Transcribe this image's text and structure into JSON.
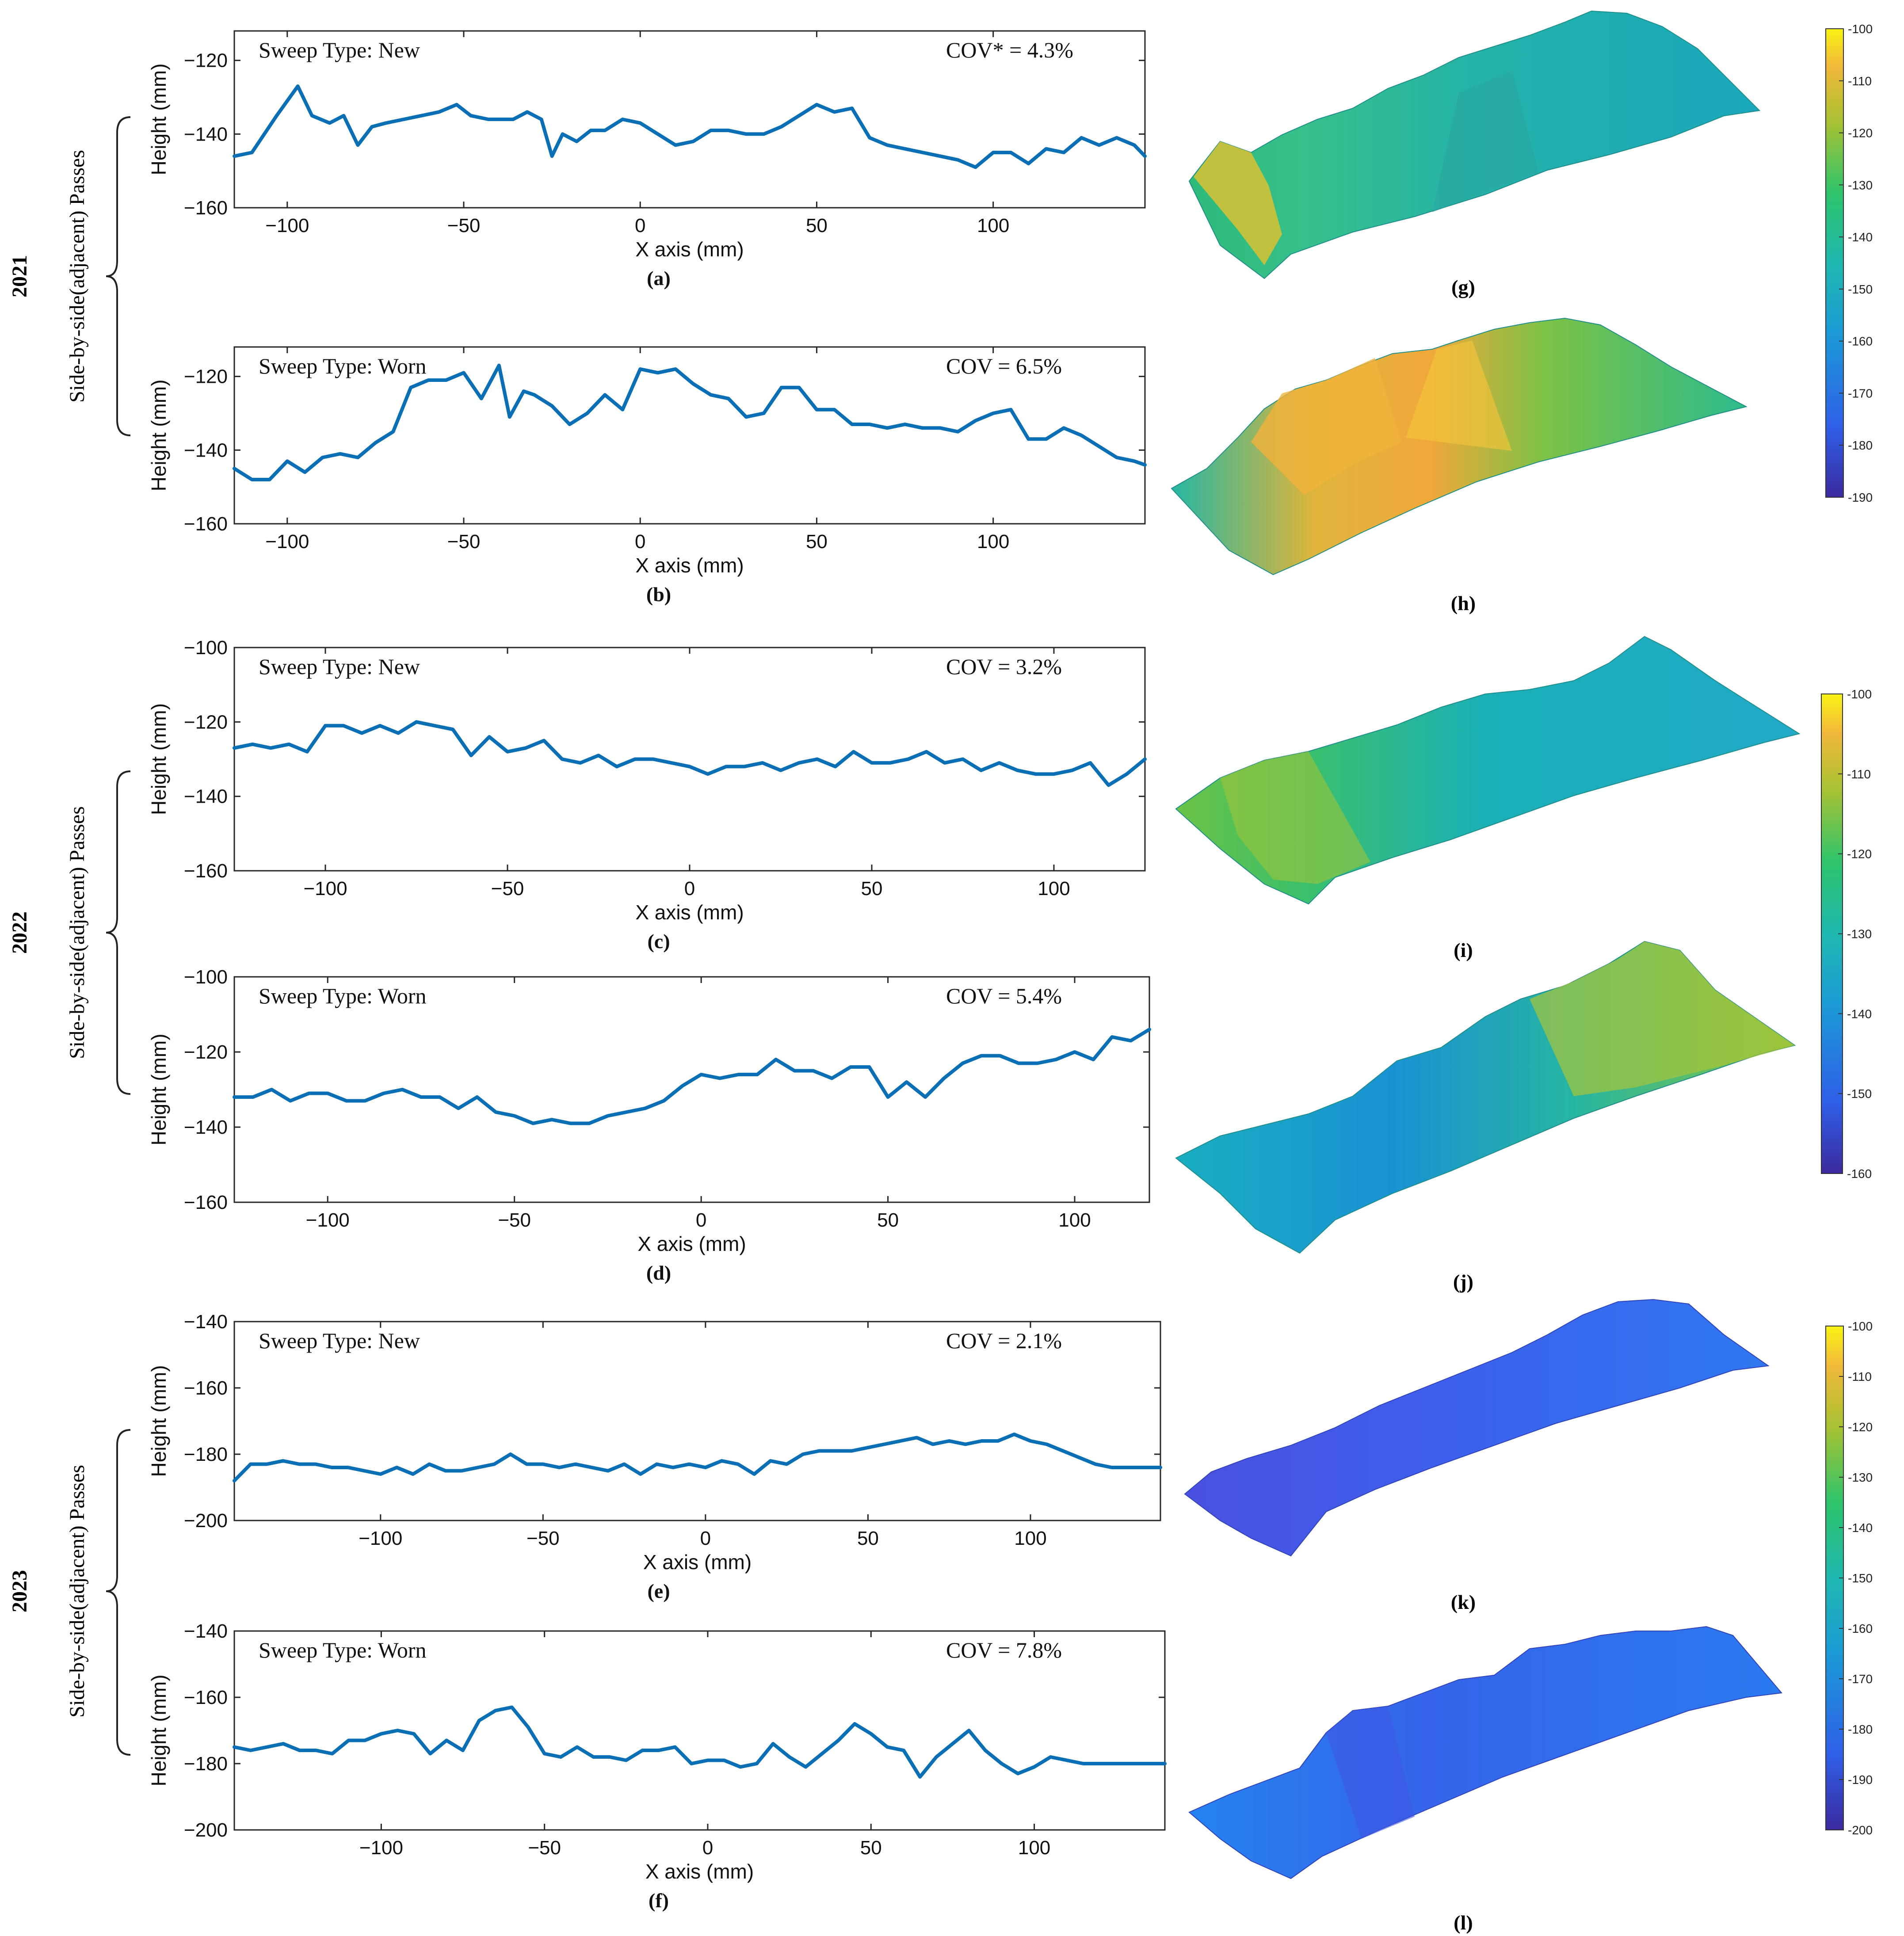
{
  "figure": {
    "colors": {
      "line": "#0a6fb5",
      "axis": "#262626",
      "text": "#111111"
    },
    "years": [
      {
        "label": "2021",
        "group_label": "Side-by-side(adjacent) Passes",
        "colorbar_ticks": [
          "-100",
          "-110",
          "-120",
          "-130",
          "-140",
          "-150",
          "-160",
          "-170",
          "-180",
          "-190"
        ]
      },
      {
        "label": "2022",
        "group_label": "Side-by-side(adjacent) Passes",
        "colorbar_ticks": [
          "-100",
          "-110",
          "-120",
          "-130",
          "-140",
          "-150",
          "-160"
        ]
      },
      {
        "label": "2023",
        "group_label": "Side-by-side(adjacent) Passes",
        "colorbar_ticks": [
          "-100",
          "-110",
          "-120",
          "-130",
          "-140",
          "-150",
          "-160",
          "-170",
          "-180",
          "-190",
          "-200"
        ]
      }
    ],
    "surfaces": [
      {
        "panel": "(g)",
        "icon": "3d-surface-icon"
      },
      {
        "panel": "(h)",
        "icon": "3d-surface-icon"
      },
      {
        "panel": "(i)",
        "icon": "3d-surface-icon"
      },
      {
        "panel": "(j)",
        "icon": "3d-surface-icon"
      },
      {
        "panel": "(k)",
        "icon": "3d-surface-icon"
      },
      {
        "panel": "(l)",
        "icon": "3d-surface-icon"
      }
    ]
  },
  "chart_data": [
    {
      "type": "line",
      "panel": "(a)",
      "sweep_label": "Sweep Type: New",
      "cov_label": "COV* = 4.3%",
      "xlabel": "X axis (mm)",
      "ylabel": "Height (mm)",
      "xlim": [
        -115,
        143
      ],
      "ylim": [
        -160,
        -112
      ],
      "xticks": [
        -100,
        -50,
        0,
        50,
        100
      ],
      "xtick_labels": [
        "−100",
        "−50",
        "0",
        "50",
        "100"
      ],
      "yticks": [
        -120,
        -140,
        -160
      ],
      "ytick_labels": [
        "−120",
        "−140",
        "−160"
      ],
      "x": [
        -115,
        -110,
        -103,
        -97,
        -93,
        -88,
        -84,
        -80,
        -76,
        -72,
        -67,
        -62,
        -57,
        -52,
        -48,
        -43,
        -36,
        -32,
        -28,
        -25,
        -22,
        -18,
        -14,
        -10,
        -5,
        0,
        5,
        10,
        15,
        20,
        25,
        30,
        35,
        40,
        45,
        50,
        55,
        60,
        65,
        70,
        75,
        80,
        85,
        90,
        95,
        100,
        105,
        110,
        115,
        120,
        125,
        130,
        135,
        140,
        143
      ],
      "y": [
        -146,
        -145,
        -135,
        -127,
        -135,
        -137,
        -135,
        -143,
        -138,
        -137,
        -136,
        -135,
        -134,
        -132,
        -135,
        -136,
        -136,
        -134,
        -136,
        -146,
        -140,
        -142,
        -139,
        -139,
        -136,
        -137,
        -140,
        -143,
        -142,
        -139,
        -139,
        -140,
        -140,
        -138,
        -135,
        -132,
        -134,
        -133,
        -141,
        -143,
        -144,
        -145,
        -146,
        -147,
        -149,
        -145,
        -145,
        -148,
        -144,
        -145,
        -141,
        -143,
        -141,
        -143,
        -146
      ]
    },
    {
      "type": "line",
      "panel": "(b)",
      "sweep_label": "Sweep Type: Worn",
      "cov_label": "COV = 6.5%",
      "xlabel": "X axis (mm)",
      "ylabel": "Height (mm)",
      "xlim": [
        -115,
        143
      ],
      "ylim": [
        -160,
        -112
      ],
      "xticks": [
        -100,
        -50,
        0,
        50,
        100
      ],
      "xtick_labels": [
        "−100",
        "−50",
        "0",
        "50",
        "100"
      ],
      "yticks": [
        -120,
        -140,
        -160
      ],
      "ytick_labels": [
        "−120",
        "−140",
        "−160"
      ],
      "x": [
        -115,
        -110,
        -105,
        -100,
        -95,
        -90,
        -85,
        -80,
        -75,
        -70,
        -65,
        -60,
        -55,
        -50,
        -45,
        -40,
        -37,
        -33,
        -30,
        -25,
        -20,
        -15,
        -10,
        -5,
        0,
        5,
        10,
        15,
        20,
        25,
        30,
        35,
        40,
        45,
        50,
        55,
        60,
        65,
        70,
        75,
        80,
        85,
        90,
        95,
        100,
        105,
        110,
        115,
        120,
        125,
        130,
        135,
        140,
        143
      ],
      "y": [
        -145,
        -148,
        -148,
        -143,
        -146,
        -142,
        -141,
        -142,
        -138,
        -135,
        -123,
        -121,
        -121,
        -119,
        -126,
        -117,
        -131,
        -124,
        -125,
        -128,
        -133,
        -130,
        -125,
        -129,
        -118,
        -119,
        -118,
        -122,
        -125,
        -126,
        -131,
        -130,
        -123,
        -123,
        -129,
        -129,
        -133,
        -133,
        -134,
        -133,
        -134,
        -134,
        -135,
        -132,
        -130,
        -129,
        -137,
        -137,
        -134,
        -136,
        -139,
        -142,
        -143,
        -144
      ]
    },
    {
      "type": "line",
      "panel": "(c)",
      "sweep_label": "Sweep Type: New",
      "cov_label": "COV = 3.2%",
      "xlabel": "X axis (mm)",
      "ylabel": "Height (mm)",
      "xlim": [
        -125,
        125
      ],
      "ylim": [
        -160,
        -100
      ],
      "xticks": [
        -100,
        -50,
        0,
        50,
        100
      ],
      "xtick_labels": [
        "−100",
        "−50",
        "0",
        "50",
        "100"
      ],
      "yticks": [
        -100,
        -120,
        -140,
        -160
      ],
      "ytick_labels": [
        "−100",
        "−120",
        "−140",
        "−160"
      ],
      "x": [
        -125,
        -120,
        -115,
        -110,
        -105,
        -100,
        -95,
        -90,
        -85,
        -80,
        -75,
        -70,
        -65,
        -60,
        -55,
        -50,
        -45,
        -40,
        -35,
        -30,
        -25,
        -20,
        -15,
        -10,
        -5,
        0,
        5,
        10,
        15,
        20,
        25,
        30,
        35,
        40,
        45,
        50,
        55,
        60,
        65,
        70,
        75,
        80,
        85,
        90,
        95,
        100,
        105,
        110,
        115,
        120,
        125
      ],
      "y": [
        -127,
        -126,
        -127,
        -126,
        -128,
        -121,
        -121,
        -123,
        -121,
        -123,
        -120,
        -121,
        -122,
        -129,
        -124,
        -128,
        -127,
        -125,
        -130,
        -131,
        -129,
        -132,
        -130,
        -130,
        -131,
        -132,
        -134,
        -132,
        -132,
        -131,
        -133,
        -131,
        -130,
        -132,
        -128,
        -131,
        -131,
        -130,
        -128,
        -131,
        -130,
        -133,
        -131,
        -133,
        -134,
        -134,
        -133,
        -131,
        -137,
        -134,
        -130
      ]
    },
    {
      "type": "line",
      "panel": "(d)",
      "sweep_label": "Sweep Type: Worn",
      "cov_label": "COV = 5.4%",
      "xlabel": "X axis (mm)",
      "ylabel": "Height (mm)",
      "xlim": [
        -125,
        120
      ],
      "ylim": [
        -160,
        -100
      ],
      "xticks": [
        -100,
        -50,
        0,
        50,
        100
      ],
      "xtick_labels": [
        "−100",
        "−50",
        "0",
        "50",
        "100"
      ],
      "yticks": [
        -100,
        -120,
        -140,
        -160
      ],
      "ytick_labels": [
        "−100",
        "−120",
        "−140",
        "−160"
      ],
      "x": [
        -125,
        -120,
        -115,
        -110,
        -105,
        -100,
        -95,
        -90,
        -85,
        -80,
        -75,
        -70,
        -65,
        -60,
        -55,
        -50,
        -45,
        -40,
        -35,
        -30,
        -25,
        -20,
        -15,
        -10,
        -5,
        0,
        5,
        10,
        15,
        20,
        25,
        30,
        35,
        40,
        45,
        50,
        55,
        60,
        65,
        70,
        75,
        80,
        85,
        90,
        95,
        100,
        105,
        110,
        115,
        120
      ],
      "y": [
        -132,
        -132,
        -130,
        -133,
        -131,
        -131,
        -133,
        -133,
        -131,
        -130,
        -132,
        -132,
        -135,
        -132,
        -136,
        -137,
        -139,
        -138,
        -139,
        -139,
        -137,
        -136,
        -135,
        -133,
        -129,
        -126,
        -127,
        -126,
        -126,
        -122,
        -125,
        -125,
        -127,
        -124,
        -124,
        -132,
        -128,
        -132,
        -127,
        -123,
        -121,
        -121,
        -123,
        -123,
        -122,
        -120,
        -122,
        -116,
        -117,
        -114
      ]
    },
    {
      "type": "line",
      "panel": "(e)",
      "sweep_label": "Sweep Type: New",
      "cov_label": "COV = 2.1%",
      "xlabel": "X axis (mm)",
      "ylabel": "Height (mm)",
      "xlim": [
        -145,
        140
      ],
      "ylim": [
        -200,
        -140
      ],
      "xticks": [
        -100,
        -50,
        0,
        50,
        100
      ],
      "xtick_labels": [
        "−100",
        "−50",
        "0",
        "50",
        "100"
      ],
      "yticks": [
        -140,
        -160,
        -180,
        -200
      ],
      "ytick_labels": [
        "−140",
        "−160",
        "−180",
        "−200"
      ],
      "x": [
        -145,
        -140,
        -135,
        -130,
        -125,
        -120,
        -115,
        -110,
        -105,
        -100,
        -95,
        -90,
        -85,
        -80,
        -75,
        -70,
        -65,
        -60,
        -55,
        -50,
        -45,
        -40,
        -35,
        -30,
        -25,
        -20,
        -15,
        -10,
        -5,
        0,
        5,
        10,
        15,
        20,
        25,
        30,
        35,
        40,
        45,
        50,
        55,
        60,
        65,
        70,
        75,
        80,
        85,
        90,
        95,
        100,
        105,
        110,
        115,
        120,
        125,
        130,
        135,
        140
      ],
      "y": [
        -188,
        -183,
        -183,
        -182,
        -183,
        -183,
        -184,
        -184,
        -185,
        -186,
        -184,
        -186,
        -183,
        -185,
        -185,
        -184,
        -183,
        -180,
        -183,
        -183,
        -184,
        -183,
        -184,
        -185,
        -183,
        -186,
        -183,
        -184,
        -183,
        -184,
        -182,
        -183,
        -186,
        -182,
        -183,
        -180,
        -179,
        -179,
        -179,
        -178,
        -177,
        -176,
        -175,
        -177,
        -176,
        -177,
        -176,
        -176,
        -174,
        -176,
        -177,
        -179,
        -181,
        -183,
        -184,
        -184,
        -184,
        -184
      ]
    },
    {
      "type": "line",
      "panel": "(f)",
      "sweep_label": "Sweep Type: Worn",
      "cov_label": "COV = 7.8%",
      "xlabel": "X axis (mm)",
      "ylabel": "Height (mm)",
      "xlim": [
        -145,
        140
      ],
      "ylim": [
        -200,
        -140
      ],
      "xticks": [
        -100,
        -50,
        0,
        50,
        100
      ],
      "xtick_labels": [
        "−100",
        "−50",
        "0",
        "50",
        "100"
      ],
      "yticks": [
        -140,
        -160,
        -180,
        -200
      ],
      "ytick_labels": [
        "−140",
        "−160",
        "−180",
        "−200"
      ],
      "x": [
        -145,
        -140,
        -135,
        -130,
        -125,
        -120,
        -115,
        -110,
        -105,
        -100,
        -95,
        -90,
        -85,
        -80,
        -75,
        -70,
        -65,
        -60,
        -55,
        -50,
        -45,
        -40,
        -35,
        -30,
        -25,
        -20,
        -15,
        -10,
        -5,
        0,
        5,
        10,
        15,
        20,
        25,
        30,
        35,
        40,
        45,
        50,
        55,
        60,
        65,
        70,
        75,
        80,
        85,
        90,
        95,
        100,
        105,
        110,
        115,
        120,
        125,
        130,
        135,
        140
      ],
      "y": [
        -175,
        -176,
        -175,
        -174,
        -176,
        -176,
        -177,
        -173,
        -173,
        -171,
        -170,
        -171,
        -177,
        -173,
        -176,
        -167,
        -164,
        -163,
        -169,
        -177,
        -178,
        -175,
        -178,
        -178,
        -179,
        -176,
        -176,
        -175,
        -180,
        -179,
        -179,
        -181,
        -180,
        -174,
        -178,
        -181,
        -177,
        -173,
        -168,
        -171,
        -175,
        -176,
        -184,
        -178,
        -174,
        -170,
        -176,
        -180,
        -183,
        -181,
        -178,
        -179,
        -180,
        -180,
        -180,
        -180,
        -180,
        -180
      ]
    }
  ]
}
